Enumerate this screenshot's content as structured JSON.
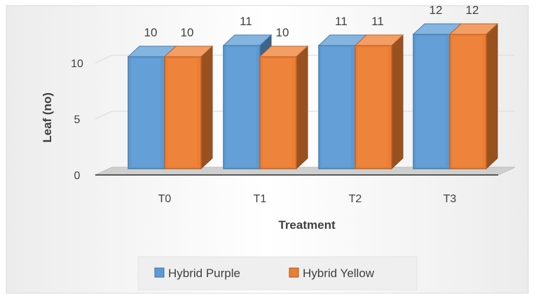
{
  "chart_data": {
    "type": "bar",
    "three_d": true,
    "title": "",
    "xlabel": "Treatment",
    "ylabel": "Leaf (no)",
    "categories": [
      "T0",
      "T1",
      "T2",
      "T3"
    ],
    "ylim": [
      0,
      12
    ],
    "yticks": [
      0,
      5,
      10
    ],
    "grid": true,
    "legend": "bottom",
    "series": [
      {
        "name": "Hybrid Purple",
        "values": [
          10,
          11,
          11,
          12
        ],
        "labels": [
          "10",
          "11",
          "11",
          "12"
        ],
        "color": "#5b9bd5"
      },
      {
        "name": "Hybrid Yellow",
        "values": [
          10,
          10,
          11,
          12
        ],
        "labels": [
          "10",
          "10",
          "11",
          "12"
        ],
        "color": "#ed7d31"
      }
    ]
  }
}
